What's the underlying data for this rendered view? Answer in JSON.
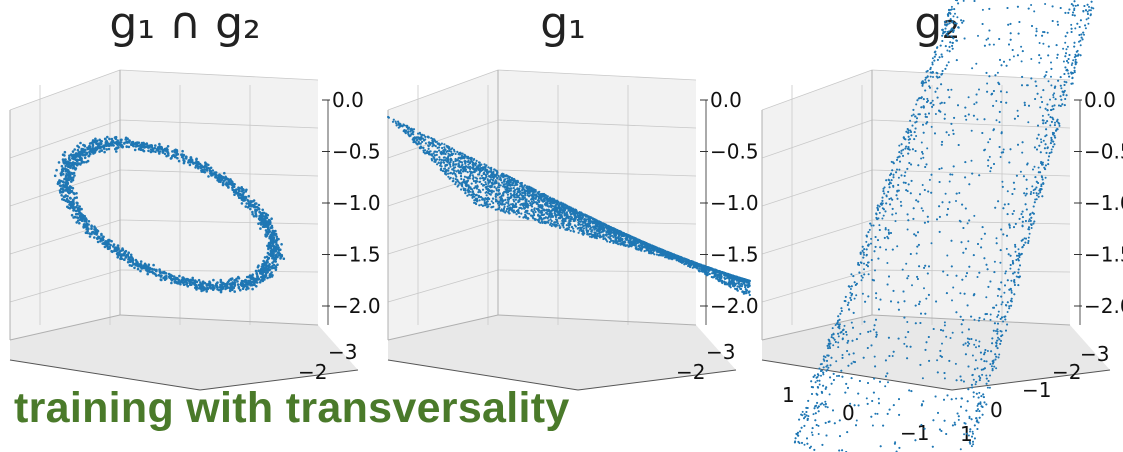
{
  "caption": {
    "text": "training with transversality",
    "color": "#4a7a2a"
  },
  "chart_data": [
    {
      "type": "scatter3d",
      "title": "g₁ ∩ g₂",
      "color": "#1f77b4",
      "zticks": [
        "0.0",
        "−0.5",
        "−1.0",
        "−1.5",
        "−2.0"
      ],
      "yticks": [
        "−3",
        "−2"
      ],
      "xticks": [],
      "shape": "ring",
      "zlim": [
        -2.0,
        0.0
      ]
    },
    {
      "type": "scatter3d",
      "title": "g₁",
      "color": "#1f77b4",
      "zticks": [
        "0.0",
        "−0.5",
        "−1.0",
        "−1.5",
        "−2.0"
      ],
      "yticks": [
        "−3",
        "−2"
      ],
      "xticks": [],
      "shape": "plane",
      "zlim": [
        -2.0,
        0.0
      ]
    },
    {
      "type": "scatter3d",
      "title": "g₂",
      "color": "#1f77b4",
      "zticks": [
        "0.0",
        "−0.5",
        "−1.0",
        "−1.5",
        "−2.0"
      ],
      "yticks": [
        "−3",
        "−2",
        "−1",
        "0",
        "1"
      ],
      "xticks": [
        "1",
        "0",
        "−1"
      ],
      "shape": "cylinder",
      "zlim": [
        -2.0,
        0.0
      ]
    }
  ]
}
